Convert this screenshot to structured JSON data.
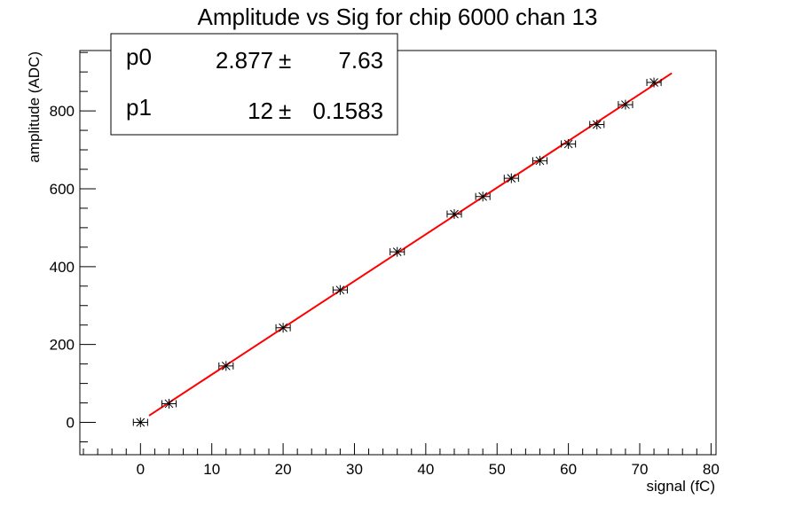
{
  "chart_data": {
    "type": "scatter",
    "title": "Amplitude vs Sig for chip 6000 chan 13",
    "xlabel": "signal (fC)",
    "ylabel": "amplitude (ADC)",
    "xlim": [
      -8.5,
      80.7
    ],
    "ylim": [
      -83,
      955
    ],
    "x_ticks": [
      0,
      10,
      20,
      30,
      40,
      50,
      60,
      70,
      80
    ],
    "y_ticks": [
      0,
      200,
      400,
      600,
      800
    ],
    "grid": false,
    "points": [
      {
        "x": 0,
        "y": 0,
        "xerr": 1
      },
      {
        "x": 4,
        "y": 48,
        "xerr": 1
      },
      {
        "x": 12,
        "y": 145,
        "xerr": 1
      },
      {
        "x": 20,
        "y": 243,
        "xerr": 1
      },
      {
        "x": 28,
        "y": 340,
        "xerr": 1
      },
      {
        "x": 36,
        "y": 438,
        "xerr": 1
      },
      {
        "x": 44,
        "y": 535,
        "xerr": 1
      },
      {
        "x": 48,
        "y": 580,
        "xerr": 1
      },
      {
        "x": 52,
        "y": 627,
        "xerr": 1
      },
      {
        "x": 56,
        "y": 672,
        "xerr": 1
      },
      {
        "x": 60,
        "y": 715,
        "xerr": 1
      },
      {
        "x": 64,
        "y": 765,
        "xerr": 1
      },
      {
        "x": 68,
        "y": 816,
        "xerr": 1
      },
      {
        "x": 72,
        "y": 873,
        "xerr": 1
      }
    ],
    "fit": {
      "function": "p0 + p1*x",
      "x_range": [
        1.2,
        74.5
      ],
      "color": "#ff0000",
      "params": [
        {
          "name": "p0",
          "value": "2.877",
          "error": "7.63"
        },
        {
          "name": "p1",
          "value": "12",
          "error": "0.1583"
        }
      ]
    },
    "stats_box_position": "top-left"
  }
}
